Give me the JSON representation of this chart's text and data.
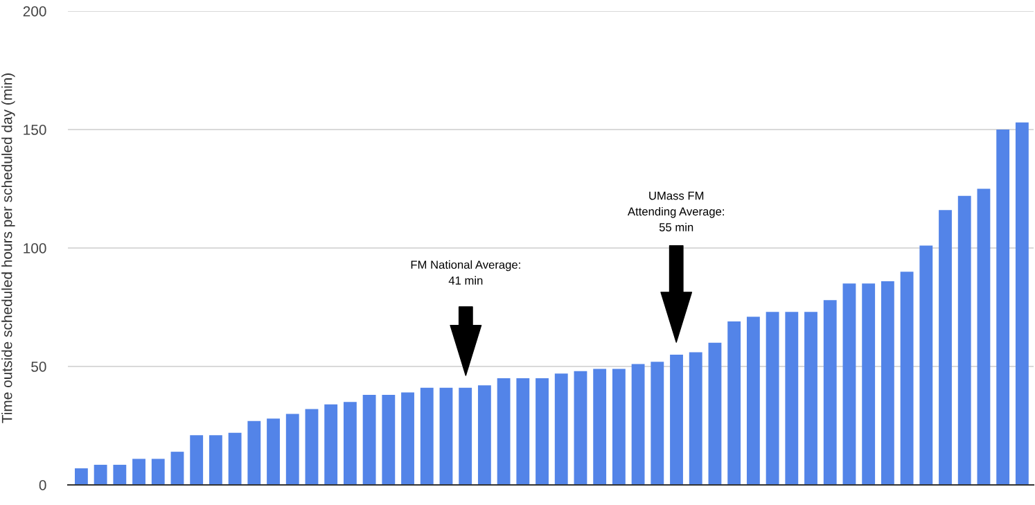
{
  "chart_data": {
    "type": "bar",
    "ylabel": "Time outside scheduled hours per scheduled day (min)",
    "categories": [
      null,
      null,
      null,
      null,
      null,
      null,
      null,
      null,
      null,
      null,
      null,
      null,
      null,
      null,
      null,
      null,
      null,
      null,
      null,
      null,
      null,
      null,
      null,
      null,
      null,
      null,
      null,
      null,
      null,
      null,
      null,
      null,
      null,
      null,
      null,
      null,
      null,
      null,
      null,
      null,
      null,
      null,
      null,
      null,
      null,
      null,
      null,
      null,
      null,
      null
    ],
    "values": [
      7,
      8.5,
      8.5,
      11,
      11,
      14,
      21,
      21,
      22,
      27,
      28,
      30,
      32,
      34,
      35,
      38,
      38,
      39,
      41,
      41,
      41,
      42,
      45,
      45,
      45,
      47,
      48,
      49,
      49,
      51,
      52,
      55,
      56,
      60,
      69,
      71,
      73,
      73,
      73,
      78,
      85,
      85,
      86,
      90,
      101,
      116,
      122,
      125,
      150,
      153
    ],
    "color": "#5384e8",
    "ylim": [
      0,
      200
    ],
    "yticks": [
      0,
      50,
      100,
      150,
      200
    ],
    "grid": "y",
    "annotations": [
      "FM National Average:\n41 min",
      "UMass FM\nAttending Average:\n55 min"
    ]
  }
}
